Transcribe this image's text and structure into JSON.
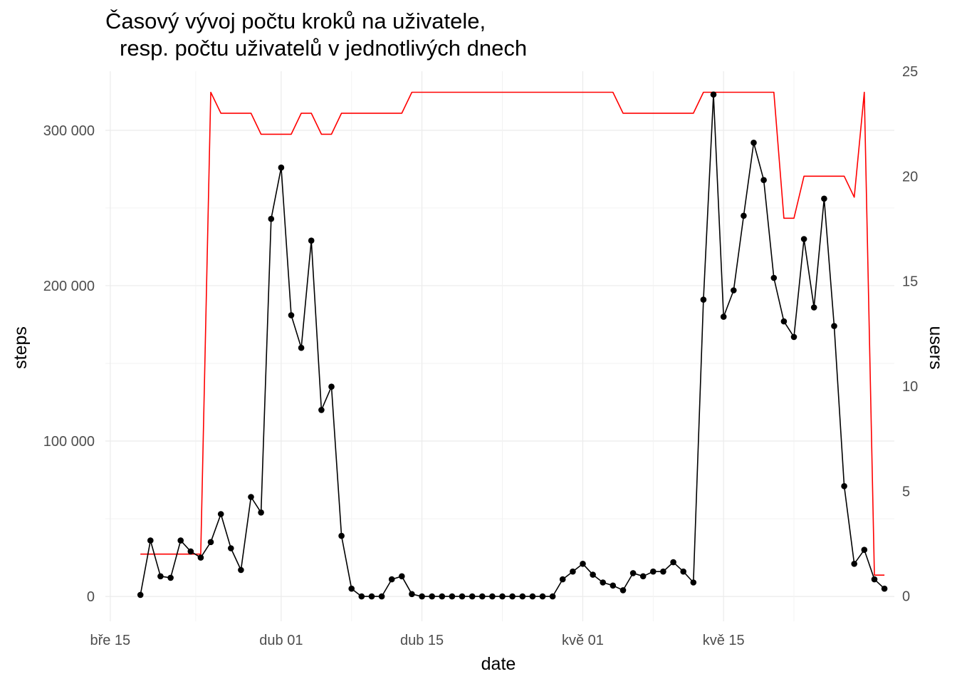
{
  "chart_data": {
    "type": "line",
    "title": "Časový vývoj počtu kroků na uživatele,",
    "title_line2": "resp. počtu uživatelů v jednotlivých dnech",
    "xlabel": "date",
    "ylabel": "steps",
    "y2label": "users",
    "x_start": "2020-03-18",
    "x_ticks": [
      {
        "date": "2020-03-15",
        "label": "bře 15"
      },
      {
        "date": "2020-04-01",
        "label": "dub 01"
      },
      {
        "date": "2020-04-15",
        "label": "dub 15"
      },
      {
        "date": "2020-05-01",
        "label": "kvě 01"
      },
      {
        "date": "2020-05-15",
        "label": "kvě 15"
      }
    ],
    "y_ticks": [
      {
        "value": 0,
        "label": "0"
      },
      {
        "value": 100000,
        "label": "100 000"
      },
      {
        "value": 200000,
        "label": "200 000"
      },
      {
        "value": 300000,
        "label": "300 000"
      }
    ],
    "y2_ticks": [
      {
        "value": 0,
        "label": "0"
      },
      {
        "value": 5,
        "label": "5"
      },
      {
        "value": 10,
        "label": "10"
      },
      {
        "value": 15,
        "label": "15"
      },
      {
        "value": 20,
        "label": "20"
      },
      {
        "value": 25,
        "label": "25"
      }
    ],
    "ylim": [
      -16000,
      338000
    ],
    "y2lim": [
      -1.2,
      25
    ],
    "grid": true,
    "series": [
      {
        "name": "steps",
        "color": "#000000",
        "markers": true,
        "axis": "left",
        "values": [
          1000,
          36000,
          13000,
          12000,
          36000,
          29000,
          25000,
          35000,
          53000,
          31000,
          17000,
          64000,
          54000,
          243000,
          276000,
          181000,
          160000,
          229000,
          120000,
          135000,
          39000,
          5000,
          0,
          0,
          0,
          11000,
          13000,
          1500,
          0,
          0,
          0,
          0,
          0,
          0,
          0,
          0,
          0,
          0,
          0,
          0,
          0,
          0,
          11000,
          16000,
          21000,
          14000,
          9000,
          7000,
          4000,
          15000,
          13000,
          16000,
          16000,
          22000,
          16000,
          9000,
          191000,
          323000,
          180000,
          197000,
          245000,
          292000,
          268000,
          205000,
          177000,
          167000,
          230000,
          186000,
          256000,
          174000,
          71000,
          21000,
          30000,
          11000,
          5000
        ]
      },
      {
        "name": "users",
        "color": "#ff0000",
        "markers": false,
        "axis": "right",
        "values": [
          2,
          2,
          2,
          2,
          2,
          2,
          2,
          24,
          23,
          23,
          23,
          23,
          22,
          22,
          22,
          22,
          23,
          23,
          22,
          22,
          23,
          23,
          23,
          23,
          23,
          23,
          23,
          24,
          24,
          24,
          24,
          24,
          24,
          24,
          24,
          24,
          24,
          24,
          24,
          24,
          24,
          24,
          24,
          24,
          24,
          24,
          24,
          24,
          23,
          23,
          23,
          23,
          23,
          23,
          23,
          23,
          24,
          24,
          24,
          24,
          24,
          24,
          24,
          24,
          18,
          18,
          20,
          20,
          20,
          20,
          20,
          19,
          24,
          1,
          1
        ]
      }
    ]
  }
}
